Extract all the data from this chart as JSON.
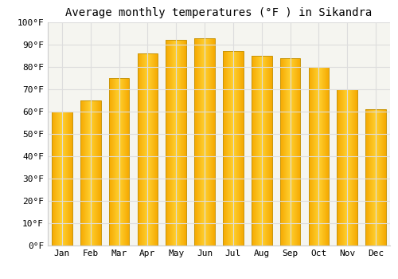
{
  "months": [
    "Jan",
    "Feb",
    "Mar",
    "Apr",
    "May",
    "Jun",
    "Jul",
    "Aug",
    "Sep",
    "Oct",
    "Nov",
    "Dec"
  ],
  "values": [
    60,
    65,
    75,
    86,
    92,
    93,
    87,
    85,
    84,
    80,
    70,
    61
  ],
  "bar_color_center": "#FFD060",
  "bar_color_edge": "#F5A800",
  "bar_edge_color": "#C8960A",
  "title": "Average monthly temperatures (°F ) in Sikandra",
  "ylim": [
    0,
    100
  ],
  "yticks": [
    0,
    10,
    20,
    30,
    40,
    50,
    60,
    70,
    80,
    90,
    100
  ],
  "ytick_labels": [
    "0°F",
    "10°F",
    "20°F",
    "30°F",
    "40°F",
    "50°F",
    "60°F",
    "70°F",
    "80°F",
    "90°F",
    "100°F"
  ],
  "background_color": "#ffffff",
  "plot_bg_color": "#f5f5f0",
  "grid_color": "#dddddd",
  "title_fontsize": 10,
  "tick_fontsize": 8,
  "font_family": "monospace"
}
